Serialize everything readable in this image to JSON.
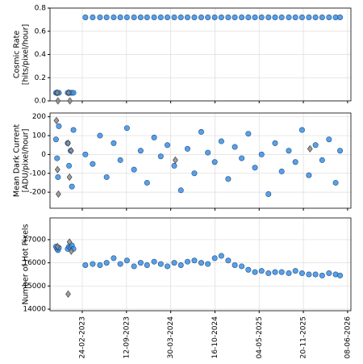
{
  "chart_data": [
    {
      "type": "scatter",
      "ylabel": [
        "Cosmic Rate",
        "[hits/pixel/hour]"
      ],
      "grid": true,
      "xtick_labels": false,
      "xlim": [
        "2022-10-01",
        "2026-06-23"
      ],
      "xticks": [
        {
          "value": "2023-02-24",
          "label": "24-02-2023"
        },
        {
          "value": "2023-09-12",
          "label": "12-09-2023"
        },
        {
          "value": "2024-03-30",
          "label": "30-03-2024"
        },
        {
          "value": "2024-10-16",
          "label": "16-10-2024"
        },
        {
          "value": "2025-05-04",
          "label": "04-05-2025"
        },
        {
          "value": "2025-11-20",
          "label": "20-11-2025"
        },
        {
          "value": "2026-06-08",
          "label": "08-06-2026"
        }
      ],
      "ylim": [
        0,
        0.8
      ],
      "yticks": [
        {
          "value": 0,
          "label": "0.0"
        },
        {
          "value": 0.2,
          "label": "0.2"
        },
        {
          "value": 0.4,
          "label": "0.4"
        },
        {
          "value": 0.6,
          "label": "0.6"
        },
        {
          "value": 0.8,
          "label": "0.8"
        }
      ],
      "series": [
        {
          "color": "#3d8fe0",
          "marker": "circle",
          "x": [
            "2022-10-28",
            "2022-11-02",
            "2022-11-06",
            "2022-11-10",
            "2022-12-20",
            "2022-12-26",
            "2023-01-02",
            "2023-01-08",
            "2023-01-15",
            "2023-03-10",
            "2023-04-12",
            "2023-05-15",
            "2023-06-14",
            "2023-07-16",
            "2023-08-15",
            "2023-09-14",
            "2023-10-16",
            "2023-11-15",
            "2023-12-14",
            "2024-01-15",
            "2024-02-14",
            "2024-03-15",
            "2024-04-15",
            "2024-05-15",
            "2024-06-14",
            "2024-07-15",
            "2024-08-15",
            "2024-09-14",
            "2024-10-15",
            "2024-11-14",
            "2024-12-15",
            "2025-01-14",
            "2025-02-14",
            "2025-03-16",
            "2025-04-15",
            "2025-05-15",
            "2025-06-15",
            "2025-07-15",
            "2025-08-14",
            "2025-09-15",
            "2025-10-15",
            "2025-11-14",
            "2025-12-15",
            "2026-01-14",
            "2026-02-13",
            "2026-03-16",
            "2026-04-15",
            "2026-05-05"
          ],
          "values": [
            0.07,
            0.07,
            0.07,
            0.07,
            0.07,
            0.07,
            0.07,
            0.07,
            0.07,
            0.72,
            0.72,
            0.72,
            0.72,
            0.72,
            0.72,
            0.72,
            0.72,
            0.72,
            0.72,
            0.72,
            0.72,
            0.72,
            0.72,
            0.72,
            0.72,
            0.72,
            0.72,
            0.72,
            0.72,
            0.72,
            0.72,
            0.72,
            0.72,
            0.72,
            0.72,
            0.72,
            0.72,
            0.72,
            0.72,
            0.72,
            0.72,
            0.72,
            0.72,
            0.72,
            0.72,
            0.72,
            0.72,
            0.72
          ]
        },
        {
          "color": "#8c8c8c",
          "marker": "diamond",
          "x": [
            "2022-11-02",
            "2022-11-06",
            "2022-12-24",
            "2022-12-30"
          ],
          "values": [
            0.07,
            0,
            0.07,
            0
          ]
        }
      ]
    },
    {
      "type": "scatter",
      "ylabel": [
        "Mean Dark Current",
        "[ADU/pixel/hour]"
      ],
      "grid": true,
      "xtick_labels": false,
      "xlim": [
        "2022-10-01",
        "2026-06-23"
      ],
      "xticks": [
        {
          "value": "2023-02-24",
          "label": "24-02-2023"
        },
        {
          "value": "2023-09-12",
          "label": "12-09-2023"
        },
        {
          "value": "2024-03-30",
          "label": "30-03-2024"
        },
        {
          "value": "2024-10-16",
          "label": "16-10-2024"
        },
        {
          "value": "2025-05-04",
          "label": "04-05-2025"
        },
        {
          "value": "2025-11-20",
          "label": "20-11-2025"
        },
        {
          "value": "2026-06-08",
          "label": "08-06-2026"
        }
      ],
      "ylim": [
        -285,
        220
      ],
      "yticks": [
        -200,
        -100,
        0,
        100,
        200
      ],
      "series": [
        {
          "color": "#3d8fe0",
          "marker": "circle",
          "x": [
            "2022-10-28",
            "2022-11-02",
            "2022-11-06",
            "2022-11-10",
            "2022-12-20",
            "2022-12-26",
            "2023-01-02",
            "2023-01-08",
            "2023-01-15",
            "2023-03-10",
            "2023-04-12",
            "2023-05-15",
            "2023-06-14",
            "2023-07-16",
            "2023-08-15",
            "2023-09-14",
            "2023-10-16",
            "2023-11-15",
            "2023-12-14",
            "2024-01-15",
            "2024-02-14",
            "2024-03-15",
            "2024-04-15",
            "2024-05-15",
            "2024-06-14",
            "2024-07-15",
            "2024-08-15",
            "2024-09-14",
            "2024-10-15",
            "2024-11-14",
            "2024-12-15",
            "2025-01-14",
            "2025-02-14",
            "2025-03-16",
            "2025-04-15",
            "2025-05-15",
            "2025-06-15",
            "2025-07-15",
            "2025-08-14",
            "2025-09-15",
            "2025-10-15",
            "2025-11-14",
            "2025-12-15",
            "2026-01-14",
            "2026-02-13",
            "2026-03-16",
            "2026-04-15",
            "2026-05-05"
          ],
          "values": [
            80,
            -20,
            -120,
            150,
            60,
            -60,
            20,
            -170,
            130,
            0,
            -50,
            100,
            -120,
            60,
            -30,
            140,
            -80,
            20,
            -150,
            90,
            -10,
            50,
            -60,
            -190,
            30,
            -100,
            120,
            10,
            -40,
            70,
            -130,
            40,
            -20,
            110,
            -70,
            0,
            -210,
            60,
            -90,
            20,
            -40,
            130,
            -110,
            50,
            -30,
            80,
            -150,
            20
          ]
        },
        {
          "color": "#8c8c8c",
          "marker": "diamond",
          "x": [
            "2022-10-30",
            "2022-11-04",
            "2022-11-08",
            "2022-12-22",
            "2022-12-28",
            "2023-01-05",
            "2024-04-20",
            "2025-12-20"
          ],
          "values": [
            180,
            -80,
            -210,
            60,
            -120,
            20,
            -30,
            30
          ]
        }
      ]
    },
    {
      "type": "scatter",
      "ylabel": [
        "Number of Hot Pixels"
      ],
      "grid": true,
      "xtick_labels": true,
      "xlim": [
        "2022-10-01",
        "2026-06-23"
      ],
      "xticks": [
        {
          "value": "2023-02-24",
          "label": "24-02-2023"
        },
        {
          "value": "2023-09-12",
          "label": "12-09-2023"
        },
        {
          "value": "2024-03-30",
          "label": "30-03-2024"
        },
        {
          "value": "2024-10-16",
          "label": "16-10-2024"
        },
        {
          "value": "2025-05-04",
          "label": "04-05-2025"
        },
        {
          "value": "2025-11-20",
          "label": "20-11-2025"
        },
        {
          "value": "2026-06-08",
          "label": "08-06-2026"
        }
      ],
      "ylim": [
        13930,
        17940
      ],
      "yticks": [
        14000,
        15000,
        16000,
        17000
      ],
      "series": [
        {
          "color": "#3d8fe0",
          "marker": "circle",
          "x": [
            "2022-10-28",
            "2022-11-02",
            "2022-11-06",
            "2022-11-10",
            "2022-12-20",
            "2022-12-26",
            "2023-01-02",
            "2023-01-08",
            "2023-01-15",
            "2023-03-10",
            "2023-04-12",
            "2023-05-15",
            "2023-06-14",
            "2023-07-16",
            "2023-08-15",
            "2023-09-14",
            "2023-10-16",
            "2023-11-15",
            "2023-12-14",
            "2024-01-15",
            "2024-02-14",
            "2024-03-15",
            "2024-04-15",
            "2024-05-15",
            "2024-06-14",
            "2024-07-15",
            "2024-08-15",
            "2024-09-14",
            "2024-10-15",
            "2024-11-14",
            "2024-12-15",
            "2025-01-14",
            "2025-02-14",
            "2025-03-16",
            "2025-04-15",
            "2025-05-15",
            "2025-06-15",
            "2025-07-15",
            "2025-08-14",
            "2025-09-15",
            "2025-10-15",
            "2025-11-14",
            "2025-12-15",
            "2026-01-14",
            "2026-02-13",
            "2026-03-16",
            "2026-04-15",
            "2026-05-05"
          ],
          "values": [
            16700,
            16600,
            16550,
            16650,
            16600,
            16700,
            16650,
            16750,
            16600,
            15900,
            15950,
            15900,
            16000,
            16200,
            15950,
            16100,
            15850,
            16000,
            15900,
            16050,
            15950,
            15850,
            16000,
            15900,
            16050,
            16100,
            16000,
            15950,
            16200,
            16300,
            16100,
            15900,
            15850,
            15700,
            15600,
            15650,
            15550,
            15600,
            15600,
            15550,
            15650,
            15550,
            15500,
            15500,
            15450,
            15550,
            15500,
            15450
          ]
        },
        {
          "color": "#8c8c8c",
          "marker": "diamond",
          "x": [
            "2022-11-04",
            "2022-12-22",
            "2022-12-28",
            "2023-01-05"
          ],
          "values": [
            16700,
            14650,
            16900,
            16500
          ]
        }
      ]
    }
  ]
}
